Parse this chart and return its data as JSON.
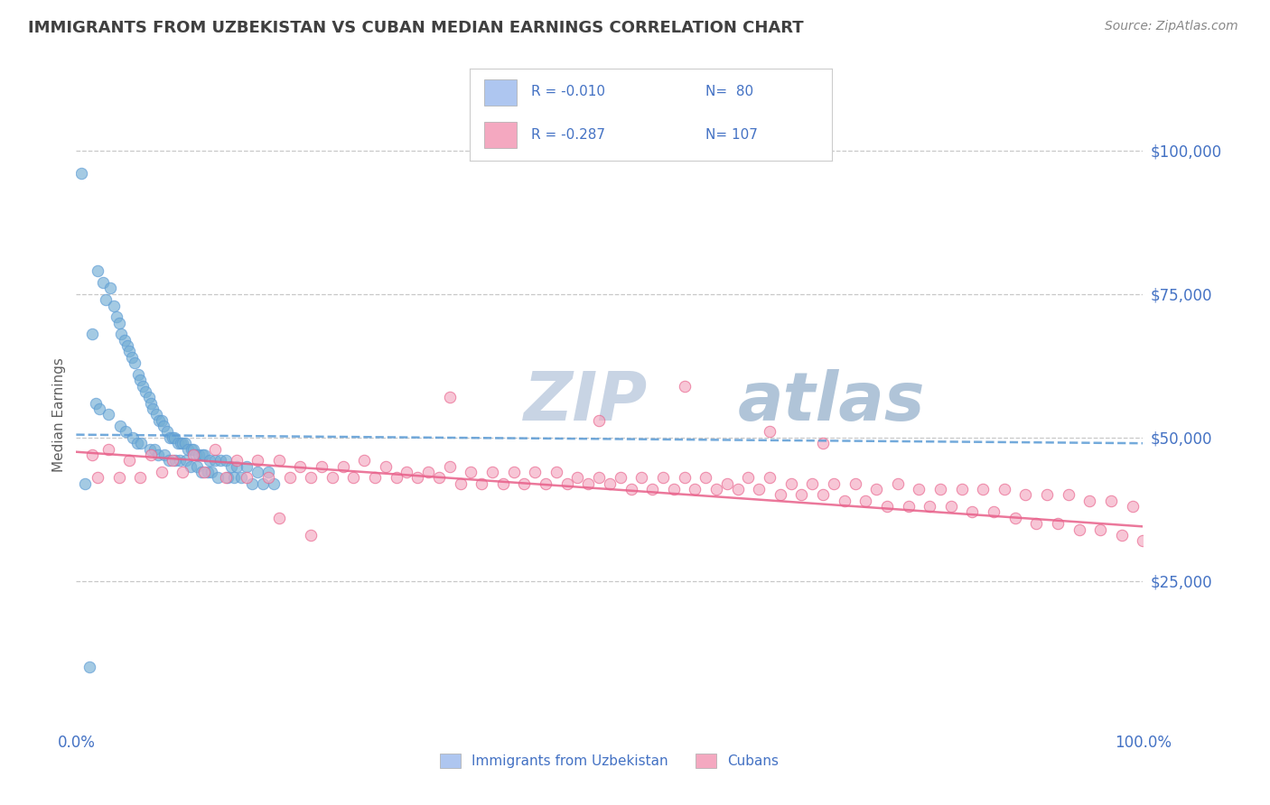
{
  "title": "IMMIGRANTS FROM UZBEKISTAN VS CUBAN MEDIAN EARNINGS CORRELATION CHART",
  "source": "Source: ZipAtlas.com",
  "ylabel": "Median Earnings",
  "y_ticks": [
    25000,
    50000,
    75000,
    100000
  ],
  "y_tick_labels": [
    "$25,000",
    "$50,000",
    "$75,000",
    "$100,000"
  ],
  "watermark": "ZIPatlas",
  "legend_entries": [
    {
      "label": "Immigrants from Uzbekistan",
      "color": "#aec6f0",
      "R": "-0.010",
      "N": "80"
    },
    {
      "label": "Cubans",
      "color": "#f4a8c0",
      "R": "-0.287",
      "N": "107"
    }
  ],
  "uzb_scatter_x": [
    0.5,
    1.5,
    2.0,
    2.5,
    2.8,
    3.2,
    3.5,
    3.8,
    4.0,
    4.2,
    4.5,
    4.8,
    5.0,
    5.2,
    5.5,
    5.8,
    6.0,
    6.2,
    6.5,
    6.8,
    7.0,
    7.2,
    7.5,
    7.8,
    8.0,
    8.2,
    8.5,
    8.8,
    9.0,
    9.2,
    9.5,
    9.8,
    10.0,
    10.2,
    10.5,
    10.8,
    11.0,
    11.2,
    11.5,
    11.8,
    12.0,
    12.5,
    13.0,
    13.5,
    14.0,
    14.5,
    15.0,
    16.0,
    17.0,
    18.0,
    1.8,
    2.2,
    3.0,
    4.1,
    4.6,
    5.3,
    5.7,
    6.1,
    6.9,
    7.3,
    7.7,
    8.3,
    8.7,
    9.3,
    9.7,
    10.3,
    10.7,
    11.3,
    11.7,
    12.3,
    12.7,
    13.3,
    14.2,
    14.8,
    15.5,
    16.5,
    17.5,
    18.5,
    0.8,
    1.2
  ],
  "uzb_scatter_y": [
    96000,
    68000,
    79000,
    77000,
    74000,
    76000,
    73000,
    71000,
    70000,
    68000,
    67000,
    66000,
    65000,
    64000,
    63000,
    61000,
    60000,
    59000,
    58000,
    57000,
    56000,
    55000,
    54000,
    53000,
    53000,
    52000,
    51000,
    50000,
    50000,
    50000,
    49000,
    49000,
    49000,
    49000,
    48000,
    48000,
    48000,
    47000,
    47000,
    47000,
    47000,
    46000,
    46000,
    46000,
    46000,
    45000,
    45000,
    45000,
    44000,
    44000,
    56000,
    55000,
    54000,
    52000,
    51000,
    50000,
    49000,
    49000,
    48000,
    48000,
    47000,
    47000,
    46000,
    46000,
    46000,
    46000,
    45000,
    45000,
    44000,
    44000,
    44000,
    43000,
    43000,
    43000,
    43000,
    42000,
    42000,
    42000,
    42000,
    10000
  ],
  "cuban_scatter_x": [
    1.5,
    3.0,
    5.0,
    7.0,
    9.0,
    11.0,
    13.0,
    15.0,
    17.0,
    19.0,
    21.0,
    23.0,
    25.0,
    27.0,
    29.0,
    31.0,
    33.0,
    35.0,
    37.0,
    39.0,
    41.0,
    43.0,
    45.0,
    47.0,
    49.0,
    51.0,
    53.0,
    55.0,
    57.0,
    59.0,
    61.0,
    63.0,
    65.0,
    67.0,
    69.0,
    71.0,
    73.0,
    75.0,
    77.0,
    79.0,
    81.0,
    83.0,
    85.0,
    87.0,
    89.0,
    91.0,
    93.0,
    95.0,
    97.0,
    99.0,
    2.0,
    4.0,
    6.0,
    8.0,
    10.0,
    12.0,
    14.0,
    16.0,
    18.0,
    20.0,
    22.0,
    24.0,
    26.0,
    28.0,
    30.0,
    32.0,
    34.0,
    36.0,
    38.0,
    40.0,
    42.0,
    44.0,
    46.0,
    48.0,
    50.0,
    52.0,
    54.0,
    56.0,
    58.0,
    60.0,
    62.0,
    64.0,
    66.0,
    68.0,
    70.0,
    72.0,
    74.0,
    76.0,
    78.0,
    80.0,
    82.0,
    84.0,
    86.0,
    88.0,
    90.0,
    92.0,
    94.0,
    96.0,
    98.0,
    100.0,
    35.0,
    57.0,
    49.0,
    19.0,
    22.0,
    65.0,
    70.0
  ],
  "cuban_scatter_y": [
    47000,
    48000,
    46000,
    47000,
    46000,
    47000,
    48000,
    46000,
    46000,
    46000,
    45000,
    45000,
    45000,
    46000,
    45000,
    44000,
    44000,
    45000,
    44000,
    44000,
    44000,
    44000,
    44000,
    43000,
    43000,
    43000,
    43000,
    43000,
    43000,
    43000,
    42000,
    43000,
    43000,
    42000,
    42000,
    42000,
    42000,
    41000,
    42000,
    41000,
    41000,
    41000,
    41000,
    41000,
    40000,
    40000,
    40000,
    39000,
    39000,
    38000,
    43000,
    43000,
    43000,
    44000,
    44000,
    44000,
    43000,
    43000,
    43000,
    43000,
    43000,
    43000,
    43000,
    43000,
    43000,
    43000,
    43000,
    42000,
    42000,
    42000,
    42000,
    42000,
    42000,
    42000,
    42000,
    41000,
    41000,
    41000,
    41000,
    41000,
    41000,
    41000,
    40000,
    40000,
    40000,
    39000,
    39000,
    38000,
    38000,
    38000,
    38000,
    37000,
    37000,
    36000,
    35000,
    35000,
    34000,
    34000,
    33000,
    32000,
    57000,
    59000,
    53000,
    36000,
    33000,
    51000,
    49000
  ],
  "uzb_line_color": "#5b9bd5",
  "cuban_line_color": "#e8608a",
  "dot_color_uzb": "#74aed4",
  "dot_color_cuban": "#f4a8c0",
  "background_color": "#ffffff",
  "grid_color": "#c8c8c8",
  "title_color": "#404040",
  "axis_label_color": "#4472c4",
  "right_label_color": "#4472c4",
  "watermark_color": "#dce6f1",
  "legend_text_color": "#4472c4",
  "uzb_trend_intercept": 50500,
  "uzb_trend_slope": -15,
  "cuban_trend_intercept": 47500,
  "cuban_trend_slope": -130
}
